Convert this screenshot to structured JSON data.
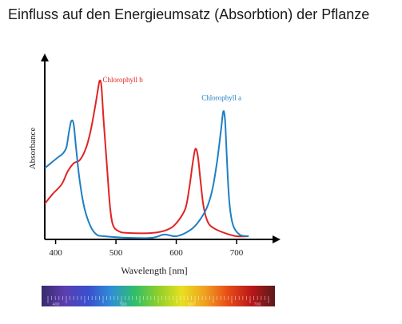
{
  "page": {
    "title": "Einfluss auf den Energieumsatz (Absorbtion) der Pflanze"
  },
  "chart_data": {
    "type": "line",
    "title": "",
    "xlabel": "Wavelength [nm]",
    "ylabel": "Absorbance",
    "xlim": [
      382,
      745
    ],
    "ylim": [
      0,
      1
    ],
    "xticks": [
      400,
      500,
      600,
      700
    ],
    "grid": false,
    "legend": "inline labels near curve peaks",
    "series": [
      {
        "name": "Chlorophyll b",
        "color": "#e02424",
        "label_at": [
          478,
          0.96
        ],
        "points": [
          [
            382,
            0.21
          ],
          [
            395,
            0.27
          ],
          [
            410,
            0.33
          ],
          [
            420,
            0.41
          ],
          [
            430,
            0.46
          ],
          [
            440,
            0.48
          ],
          [
            450,
            0.55
          ],
          [
            458,
            0.66
          ],
          [
            465,
            0.8
          ],
          [
            470,
            0.91
          ],
          [
            473,
            0.97
          ],
          [
            476,
            0.93
          ],
          [
            480,
            0.7
          ],
          [
            485,
            0.45
          ],
          [
            490,
            0.2
          ],
          [
            495,
            0.08
          ],
          [
            505,
            0.04
          ],
          [
            520,
            0.03
          ],
          [
            560,
            0.03
          ],
          [
            585,
            0.05
          ],
          [
            600,
            0.09
          ],
          [
            615,
            0.18
          ],
          [
            622,
            0.32
          ],
          [
            628,
            0.48
          ],
          [
            632,
            0.55
          ],
          [
            636,
            0.5
          ],
          [
            640,
            0.36
          ],
          [
            645,
            0.2
          ],
          [
            652,
            0.1
          ],
          [
            662,
            0.06
          ],
          [
            680,
            0.03
          ],
          [
            700,
            0.01
          ],
          [
            720,
            0.01
          ]
        ]
      },
      {
        "name": "Chlorophyll a",
        "color": "#1f7fc4",
        "label_at": [
          675,
          0.85
        ],
        "points": [
          [
            382,
            0.43
          ],
          [
            395,
            0.47
          ],
          [
            405,
            0.5
          ],
          [
            412,
            0.52
          ],
          [
            418,
            0.56
          ],
          [
            422,
            0.65
          ],
          [
            426,
            0.72
          ],
          [
            430,
            0.7
          ],
          [
            434,
            0.55
          ],
          [
            440,
            0.35
          ],
          [
            448,
            0.18
          ],
          [
            458,
            0.07
          ],
          [
            468,
            0.02
          ],
          [
            480,
            0.01
          ],
          [
            520,
            0.0
          ],
          [
            560,
            0.0
          ],
          [
            580,
            0.02
          ],
          [
            600,
            0.01
          ],
          [
            620,
            0.04
          ],
          [
            635,
            0.09
          ],
          [
            650,
            0.18
          ],
          [
            660,
            0.3
          ],
          [
            668,
            0.48
          ],
          [
            674,
            0.66
          ],
          [
            678,
            0.78
          ],
          [
            681,
            0.72
          ],
          [
            684,
            0.48
          ],
          [
            688,
            0.22
          ],
          [
            694,
            0.08
          ],
          [
            705,
            0.02
          ],
          [
            720,
            0.01
          ]
        ]
      }
    ]
  },
  "spectrum_bar": {
    "ticks": [
      "400",
      "500",
      "600",
      "700"
    ],
    "colors": [
      "#3a2a6a",
      "#5b3fb0",
      "#3a4fd0",
      "#2f8fd6",
      "#2fbf6a",
      "#8fcf2a",
      "#e8e020",
      "#f0a020",
      "#e84a18",
      "#b81818",
      "#5a1a1a"
    ]
  }
}
